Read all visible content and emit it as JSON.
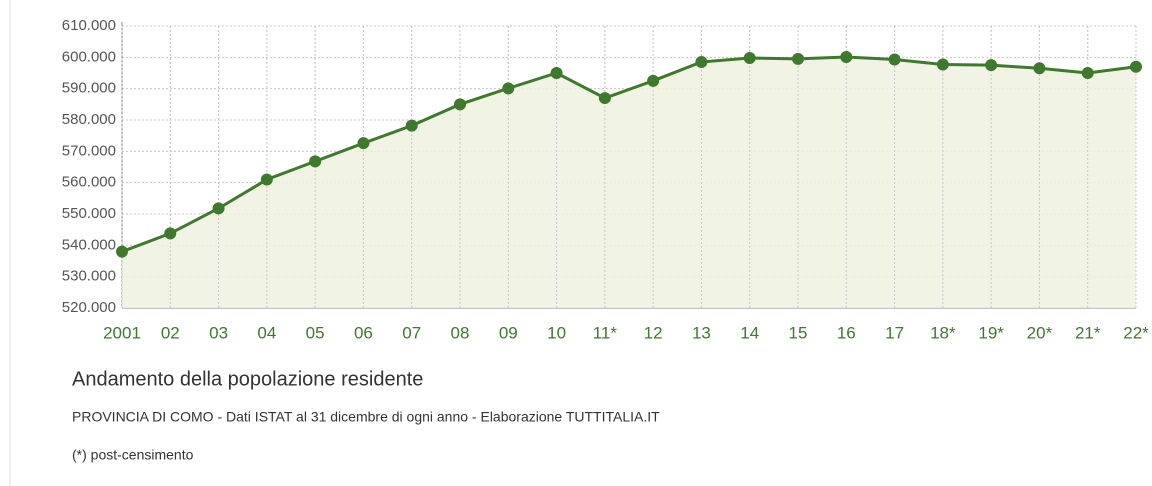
{
  "chart_data": {
    "type": "line",
    "title": "Andamento della popolazione residente",
    "subtitle": "PROVINCIA DI COMO - Dati ISTAT al 31 dicembre di ogni anno - Elaborazione TUTTITALIA.IT",
    "note": "(*) post-censimento",
    "categories": [
      "2001",
      "02",
      "03",
      "04",
      "05",
      "06",
      "07",
      "08",
      "09",
      "10",
      "11*",
      "12",
      "13",
      "14",
      "15",
      "16",
      "17",
      "18*",
      "19*",
      "20*",
      "21*",
      "22*"
    ],
    "series": [
      {
        "color": "#3d7a2b",
        "values": [
          538000,
          543800,
          551800,
          561000,
          566800,
          572600,
          578200,
          585000,
          590100,
          595000,
          587000,
          592500,
          598500,
          599800,
          599500,
          600100,
          599300,
          597700,
          597500,
          596500,
          595000,
          597000
        ]
      }
    ],
    "area_color": "#eef2e1",
    "ylim": [
      520000,
      610000
    ],
    "yticks": [
      {
        "value": 520000,
        "label": "520.000"
      },
      {
        "value": 530000,
        "label": "530.000"
      },
      {
        "value": 540000,
        "label": "540.000"
      },
      {
        "value": 550000,
        "label": "550.000"
      },
      {
        "value": 560000,
        "label": "560.000"
      },
      {
        "value": 570000,
        "label": "570.000"
      },
      {
        "value": 580000,
        "label": "580.000"
      },
      {
        "value": 590000,
        "label": "590.000"
      },
      {
        "value": 600000,
        "label": "600.000"
      },
      {
        "value": 610000,
        "label": "610.000"
      }
    ],
    "grid": true
  }
}
